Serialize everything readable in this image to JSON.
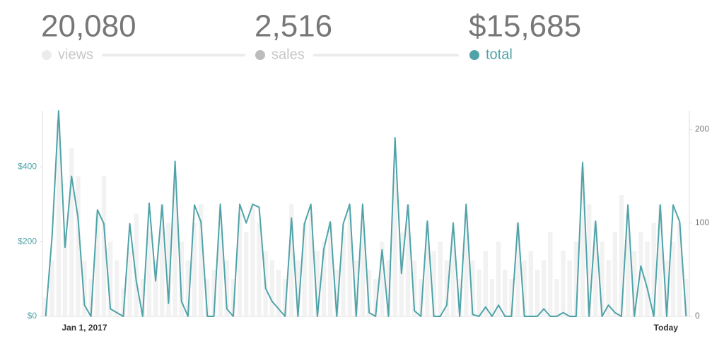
{
  "stats": [
    {
      "label": "20,080",
      "name": "views",
      "color": "#ececec",
      "active": false
    },
    {
      "label": "2,516",
      "name": "sales",
      "color": "#bdbdbd",
      "active": false
    },
    {
      "label": "$15,685",
      "name": "total",
      "color": "#4fa3a8",
      "active": true
    }
  ],
  "chart_data": {
    "type": "line",
    "categories": [
      null,
      null,
      null,
      null,
      null,
      null,
      "Jan 1, 2017",
      null,
      null,
      null,
      null,
      null,
      null,
      null,
      null,
      null,
      null,
      null,
      null,
      null,
      null,
      null,
      null,
      null,
      null,
      null,
      null,
      null,
      null,
      null,
      null,
      null,
      null,
      null,
      null,
      null,
      null,
      null,
      null,
      null,
      null,
      null,
      null,
      null,
      null,
      null,
      null,
      null,
      null,
      null,
      null,
      null,
      null,
      null,
      null,
      null,
      null,
      null,
      null,
      null,
      null,
      null,
      null,
      null,
      null,
      null,
      null,
      null,
      null,
      null,
      null,
      null,
      null,
      null,
      null,
      null,
      null,
      null,
      null,
      null,
      null,
      null,
      null,
      null,
      null,
      null,
      null,
      null,
      null,
      null,
      null,
      null,
      null,
      null,
      null,
      null,
      null,
      null,
      null,
      "Today"
    ],
    "series": [
      {
        "name": "views",
        "color": "#f2f2f2",
        "axis": "y2",
        "kind": "bar",
        "values": [
          20,
          60,
          210,
          90,
          180,
          150,
          60,
          40,
          110,
          150,
          80,
          60,
          30,
          70,
          110,
          40,
          90,
          60,
          120,
          100,
          140,
          80,
          60,
          100,
          120,
          40,
          50,
          90,
          60,
          40,
          110,
          90,
          120,
          100,
          70,
          60,
          50,
          40,
          120,
          60,
          100,
          110,
          70,
          80,
          100,
          50,
          90,
          110,
          60,
          100,
          50,
          40,
          80,
          60,
          150,
          90,
          120,
          60,
          40,
          100,
          70,
          80,
          60,
          90,
          40,
          110,
          60,
          50,
          70,
          40,
          80,
          50,
          40,
          100,
          60,
          70,
          50,
          60,
          90,
          40,
          70,
          60,
          80,
          160,
          120,
          100,
          80,
          60,
          90,
          130,
          110,
          70,
          90,
          80,
          100,
          120,
          60,
          80,
          100,
          40
        ]
      },
      {
        "name": "total",
        "color": "#4fa3a8",
        "axis": "y",
        "kind": "line",
        "values": [
          0,
          215,
          550,
          185,
          375,
          265,
          30,
          0,
          285,
          248,
          20,
          10,
          0,
          248,
          95,
          0,
          303,
          95,
          298,
          35,
          415,
          40,
          0,
          298,
          253,
          0,
          0,
          300,
          20,
          0,
          300,
          250,
          300,
          292,
          75,
          40,
          20,
          0,
          263,
          0,
          248,
          300,
          0,
          180,
          253,
          0,
          248,
          300,
          0,
          300,
          10,
          0,
          178,
          0,
          478,
          115,
          298,
          15,
          0,
          255,
          0,
          0,
          30,
          250,
          0,
          300,
          5,
          0,
          25,
          0,
          30,
          0,
          0,
          250,
          0,
          0,
          0,
          20,
          0,
          0,
          10,
          0,
          0,
          412,
          0,
          255,
          0,
          30,
          10,
          0,
          298,
          0,
          135,
          75,
          0,
          298,
          0,
          298,
          253,
          0
        ]
      }
    ],
    "ylim": [
      0,
      550
    ],
    "yticks": [
      {
        "value": 0,
        "label": "$0"
      },
      {
        "value": 200,
        "label": "$200"
      },
      {
        "value": 400,
        "label": "$400"
      }
    ],
    "y2lim": [
      0,
      220
    ],
    "y2ticks": [
      0,
      100,
      200
    ]
  }
}
